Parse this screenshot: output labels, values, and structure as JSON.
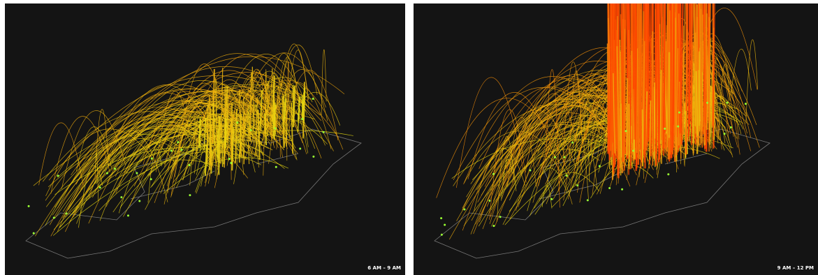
{
  "panels": [
    {
      "label": "6 AM – 9 AM"
    },
    {
      "label": "9 AM – 12 PM"
    }
  ]
}
